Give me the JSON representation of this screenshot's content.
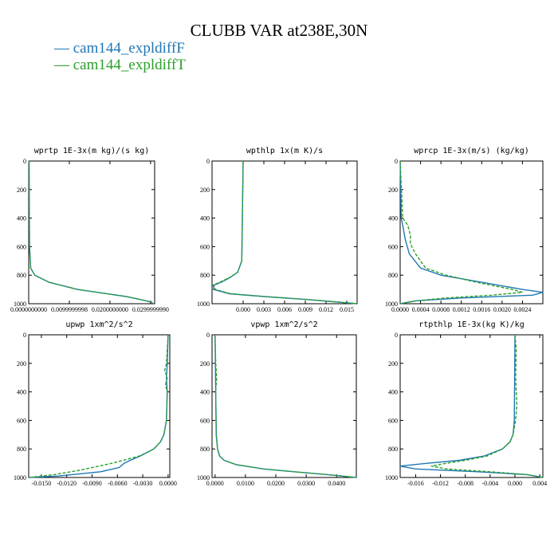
{
  "title": "CLUBB VAR at238E,30N",
  "legend": [
    {
      "label": "cam144_expldiffF",
      "color": "#1f77b4"
    },
    {
      "label": "cam144_expldiffT",
      "color": "#2ca02c"
    }
  ],
  "chart_data": [
    {
      "type": "line",
      "title": "wprtp  1E-3x(m kg)/(s kg)",
      "xlim": [
        0,
        0.031
      ],
      "ylim": [
        1000,
        0
      ],
      "xticks": [
        0,
        0.01,
        0.02,
        0.03
      ],
      "xtick_labels": [
        "0.0000000000",
        "0.0099999998",
        "0.0200000000",
        "0.0299999990"
      ],
      "yticks": [
        0,
        200,
        400,
        600,
        800,
        1000
      ],
      "series": [
        {
          "name": "cam144_expldiffF",
          "y": [
            0,
            600,
            750,
            800,
            850,
            900,
            950,
            980,
            992
          ],
          "x": [
            0.0001,
            0.0002,
            0.0005,
            0.0015,
            0.005,
            0.012,
            0.024,
            0.029,
            0.0305
          ]
        },
        {
          "name": "cam144_expldiffT",
          "y": [
            0,
            600,
            750,
            800,
            850,
            900,
            950,
            980,
            992
          ],
          "x": [
            0.0001,
            0.0002,
            0.0005,
            0.0015,
            0.005,
            0.012,
            0.024,
            0.029,
            0.0304
          ]
        }
      ]
    },
    {
      "type": "line",
      "title": "wpthlp  1x(m K)/s",
      "xlim": [
        -0.0045,
        0.0165
      ],
      "ylim": [
        1000,
        0
      ],
      "xticks": [
        0,
        0.003,
        0.006,
        0.009,
        0.012,
        0.015
      ],
      "xtick_labels": [
        "0.000",
        "0.003",
        "0.006",
        "0.009",
        "0.012",
        "0.015"
      ],
      "yticks": [
        0,
        200,
        400,
        600,
        800,
        1000
      ],
      "series": [
        {
          "name": "cam144_expldiffF",
          "y": [
            0,
            700,
            780,
            820,
            850,
            870,
            900,
            930,
            950,
            970,
            990,
            1000
          ],
          "x": [
            0.0,
            -0.0002,
            -0.0008,
            -0.002,
            -0.0032,
            -0.0042,
            -0.0043,
            -0.002,
            0.003,
            0.009,
            0.014,
            0.0165
          ]
        },
        {
          "name": "cam144_expldiffT",
          "y": [
            0,
            700,
            780,
            820,
            850,
            870,
            900,
            930,
            950,
            970,
            990,
            1000
          ],
          "x": [
            0.0,
            -0.0002,
            -0.0008,
            -0.0021,
            -0.0034,
            -0.0044,
            -0.004,
            -0.0018,
            0.0032,
            0.0092,
            0.0142,
            0.0165
          ]
        }
      ]
    },
    {
      "type": "line",
      "title": "wprcp  1E-3x(m/s) (kg/kg)",
      "xlim": [
        0,
        0.0028
      ],
      "ylim": [
        1000,
        0
      ],
      "xticks": [
        0,
        0.0004,
        0.0008,
        0.0012,
        0.0016,
        0.002,
        0.0024
      ],
      "xtick_labels": [
        "0.0000",
        "0.0004",
        "0.0008",
        "0.0012",
        "0.0016",
        "0.0020",
        "0.0024"
      ],
      "yticks": [
        0,
        200,
        400,
        600,
        800,
        1000
      ],
      "series": [
        {
          "name": "cam144_expldiffF",
          "y": [
            0,
            400,
            450,
            550,
            650,
            750,
            800,
            850,
            900,
            920,
            940,
            960,
            980,
            1000
          ],
          "x": [
            0,
            2e-05,
            5e-05,
            0.0001,
            0.00018,
            0.0004,
            0.0008,
            0.0016,
            0.0024,
            0.0028,
            0.0026,
            0.0012,
            0.0003,
            0
          ]
        },
        {
          "name": "cam144_expldiffT",
          "y": [
            0,
            400,
            450,
            520,
            580,
            650,
            750,
            800,
            850,
            900,
            920,
            940,
            960,
            980,
            1000
          ],
          "x": [
            0,
            5e-05,
            0.00015,
            0.0002,
            0.0002,
            0.0003,
            0.0005,
            0.0009,
            0.0015,
            0.0022,
            0.0024,
            0.0018,
            0.0009,
            0.0003,
            0
          ]
        }
      ]
    },
    {
      "type": "line",
      "title": "upwp  1xm^2/s^2",
      "xlim": [
        -0.0165,
        0.0002
      ],
      "ylim": [
        1000,
        0
      ],
      "xticks": [
        -0.015,
        -0.012,
        -0.009,
        -0.006,
        -0.003,
        0
      ],
      "xtick_labels": [
        "-0.0150",
        "-0.0120",
        "-0.0090",
        "-0.0060",
        "-0.0030",
        "0.0000"
      ],
      "yticks": [
        0,
        200,
        400,
        600,
        800,
        1000
      ],
      "series": [
        {
          "name": "cam144_expldiffF",
          "y": [
            0,
            200,
            300,
            400,
            600,
            700,
            750,
            800,
            850,
            880,
            900,
            930,
            960,
            990,
            1000
          ],
          "x": [
            0,
            -0.0001,
            -0.0002,
            -0.0001,
            -0.0002,
            -0.0005,
            -0.0009,
            -0.0017,
            -0.0033,
            -0.0045,
            -0.0052,
            -0.0058,
            -0.008,
            -0.013,
            -0.0165
          ]
        },
        {
          "name": "cam144_expldiffT",
          "y": [
            0,
            200,
            250,
            300,
            350,
            400,
            600,
            700,
            750,
            800,
            850,
            900,
            950,
            980,
            1000
          ],
          "x": [
            0,
            -0.0002,
            -0.0004,
            -0.0001,
            -0.0003,
            -0.0001,
            -0.0002,
            -0.0005,
            -0.0009,
            -0.0017,
            -0.0034,
            -0.0066,
            -0.0105,
            -0.0135,
            -0.0165
          ]
        }
      ]
    },
    {
      "type": "line",
      "title": "vpwp  1xm^2/s^2",
      "xlim": [
        -0.001,
        0.0465
      ],
      "ylim": [
        1000,
        0
      ],
      "xticks": [
        0,
        0.01,
        0.02,
        0.03,
        0.04
      ],
      "xtick_labels": [
        "0.0000",
        "0.0100",
        "0.0200",
        "0.0300",
        "0.0400"
      ],
      "yticks": [
        0,
        200,
        400,
        600,
        800,
        1000
      ],
      "series": [
        {
          "name": "cam144_expldiffF",
          "y": [
            0,
            200,
            400,
            700,
            800,
            850,
            880,
            910,
            940,
            960,
            980,
            1000
          ],
          "x": [
            0,
            0.0001,
            0.0002,
            0.0004,
            0.0008,
            0.0015,
            0.003,
            0.007,
            0.016,
            0.026,
            0.037,
            0.0465
          ]
        },
        {
          "name": "cam144_expldiffT",
          "y": [
            0,
            200,
            300,
            400,
            700,
            800,
            850,
            880,
            910,
            940,
            960,
            980,
            1000
          ],
          "x": [
            0,
            0.0002,
            0.0005,
            0.0002,
            0.0004,
            0.0008,
            0.0015,
            0.003,
            0.007,
            0.016,
            0.026,
            0.037,
            0.0465
          ]
        }
      ]
    },
    {
      "type": "line",
      "title": "rtpthlp  1E-3x(kg K)/kg",
      "xlim": [
        -0.0185,
        0.0045
      ],
      "ylim": [
        1000,
        0
      ],
      "xticks": [
        -0.016,
        -0.012,
        -0.008,
        -0.004,
        0,
        0.004
      ],
      "xtick_labels": [
        "-0.016",
        "-0.012",
        "-0.008",
        "-0.004",
        "0.000",
        "0.004"
      ],
      "yticks": [
        0,
        200,
        400,
        600,
        800,
        1000
      ],
      "series": [
        {
          "name": "cam144_expldiffF",
          "y": [
            0,
            600,
            700,
            750,
            800,
            850,
            880,
            900,
            920,
            940,
            960,
            980,
            1000
          ],
          "x": [
            0,
            -0.0001,
            -0.0003,
            -0.0008,
            -0.002,
            -0.005,
            -0.009,
            -0.014,
            -0.0185,
            -0.016,
            -0.006,
            0.002,
            0.0045
          ]
        },
        {
          "name": "cam144_expldiffT",
          "y": [
            0,
            100,
            300,
            500,
            600,
            700,
            750,
            800,
            850,
            880,
            900,
            920,
            940,
            960,
            980,
            1000
          ],
          "x": [
            0,
            0.0002,
            0.0001,
            0.0003,
            0.0001,
            -0.0003,
            -0.0008,
            -0.002,
            -0.0045,
            -0.008,
            -0.011,
            -0.0135,
            -0.011,
            -0.004,
            0.002,
            0.0045
          ]
        }
      ]
    }
  ]
}
